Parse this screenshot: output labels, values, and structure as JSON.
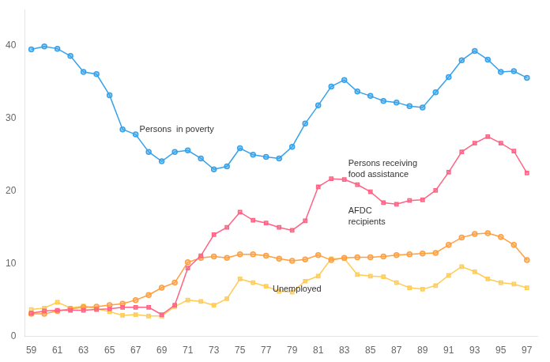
{
  "chart_data": {
    "type": "line",
    "x": [
      59,
      60,
      61,
      62,
      63,
      64,
      65,
      66,
      67,
      68,
      69,
      70,
      71,
      72,
      73,
      74,
      75,
      76,
      77,
      78,
      79,
      80,
      81,
      82,
      83,
      84,
      85,
      86,
      87,
      88,
      89,
      90,
      91,
      92,
      93,
      94,
      95,
      96,
      97
    ],
    "series": [
      {
        "marker": "circle",
        "values": [
          39.5,
          39.9,
          39.6,
          38.6,
          36.4,
          36.1,
          33.2,
          28.5,
          27.8,
          25.4,
          24.1,
          25.4,
          25.6,
          24.5,
          23.0,
          23.4,
          25.9,
          25.0,
          24.7,
          24.5,
          26.1,
          29.3,
          31.8,
          34.4,
          35.3,
          33.7,
          33.1,
          32.4,
          32.2,
          31.7,
          31.5,
          33.6,
          35.7,
          38.0,
          39.3,
          38.1,
          36.4,
          36.5,
          35.6
        ]
      },
      {
        "marker": "square",
        "values": [
          3.2,
          3.5,
          3.6,
          3.6,
          3.6,
          3.7,
          3.8,
          4.0,
          4.0,
          4.0,
          3.0,
          4.3,
          9.4,
          11.1,
          14.0,
          15.0,
          17.1,
          16.0,
          15.6,
          15.0,
          14.6,
          15.9,
          20.6,
          21.7,
          21.6,
          20.9,
          19.9,
          18.4,
          18.2,
          18.7,
          18.8,
          20.1,
          22.6,
          25.4,
          26.6,
          27.5,
          26.6,
          25.5,
          22.5
        ]
      },
      {
        "marker": "circle",
        "values": [
          3.1,
          3.1,
          3.5,
          3.8,
          4.0,
          4.1,
          4.3,
          4.5,
          5.0,
          5.7,
          6.7,
          7.4,
          10.2,
          10.8,
          11.0,
          10.8,
          11.3,
          11.3,
          11.1,
          10.7,
          10.4,
          10.6,
          11.2,
          10.5,
          10.8,
          10.9,
          10.9,
          11.0,
          11.2,
          11.3,
          11.4,
          11.5,
          12.6,
          13.6,
          14.1,
          14.2,
          13.7,
          12.6,
          10.5
        ]
      },
      {
        "marker": "square",
        "values": [
          3.7,
          3.9,
          4.7,
          3.9,
          4.2,
          3.8,
          3.4,
          2.9,
          3.0,
          2.8,
          2.8,
          4.1,
          5.0,
          4.8,
          4.3,
          5.2,
          7.9,
          7.4,
          6.9,
          6.2,
          6.1,
          7.6,
          8.3,
          10.7,
          10.7,
          8.5,
          8.3,
          8.2,
          7.4,
          6.7,
          6.5,
          7.0,
          8.4,
          9.6,
          8.9,
          7.9,
          7.4,
          7.2,
          6.7
        ]
      }
    ],
    "annotations": [
      {
        "text": "Persons  in poverty",
        "x": 67.3,
        "y": 28.5
      },
      {
        "text": "Persons receiving\nfood assistance",
        "x": 83.3,
        "y": 23.0
      },
      {
        "text": "AFDC\nrecipients",
        "x": 83.3,
        "y": 16.5
      },
      {
        "text": "Unemployed",
        "x": 77.5,
        "y": 6.5
      }
    ],
    "xlim": [
      58.5,
      97.8
    ],
    "xticks": [
      59,
      61,
      63,
      65,
      67,
      69,
      71,
      73,
      75,
      77,
      79,
      81,
      83,
      85,
      87,
      89,
      91,
      93,
      95,
      97
    ],
    "ylim": [
      0,
      45
    ],
    "yticks": [
      0,
      10,
      20,
      30,
      40
    ],
    "grid": false
  }
}
